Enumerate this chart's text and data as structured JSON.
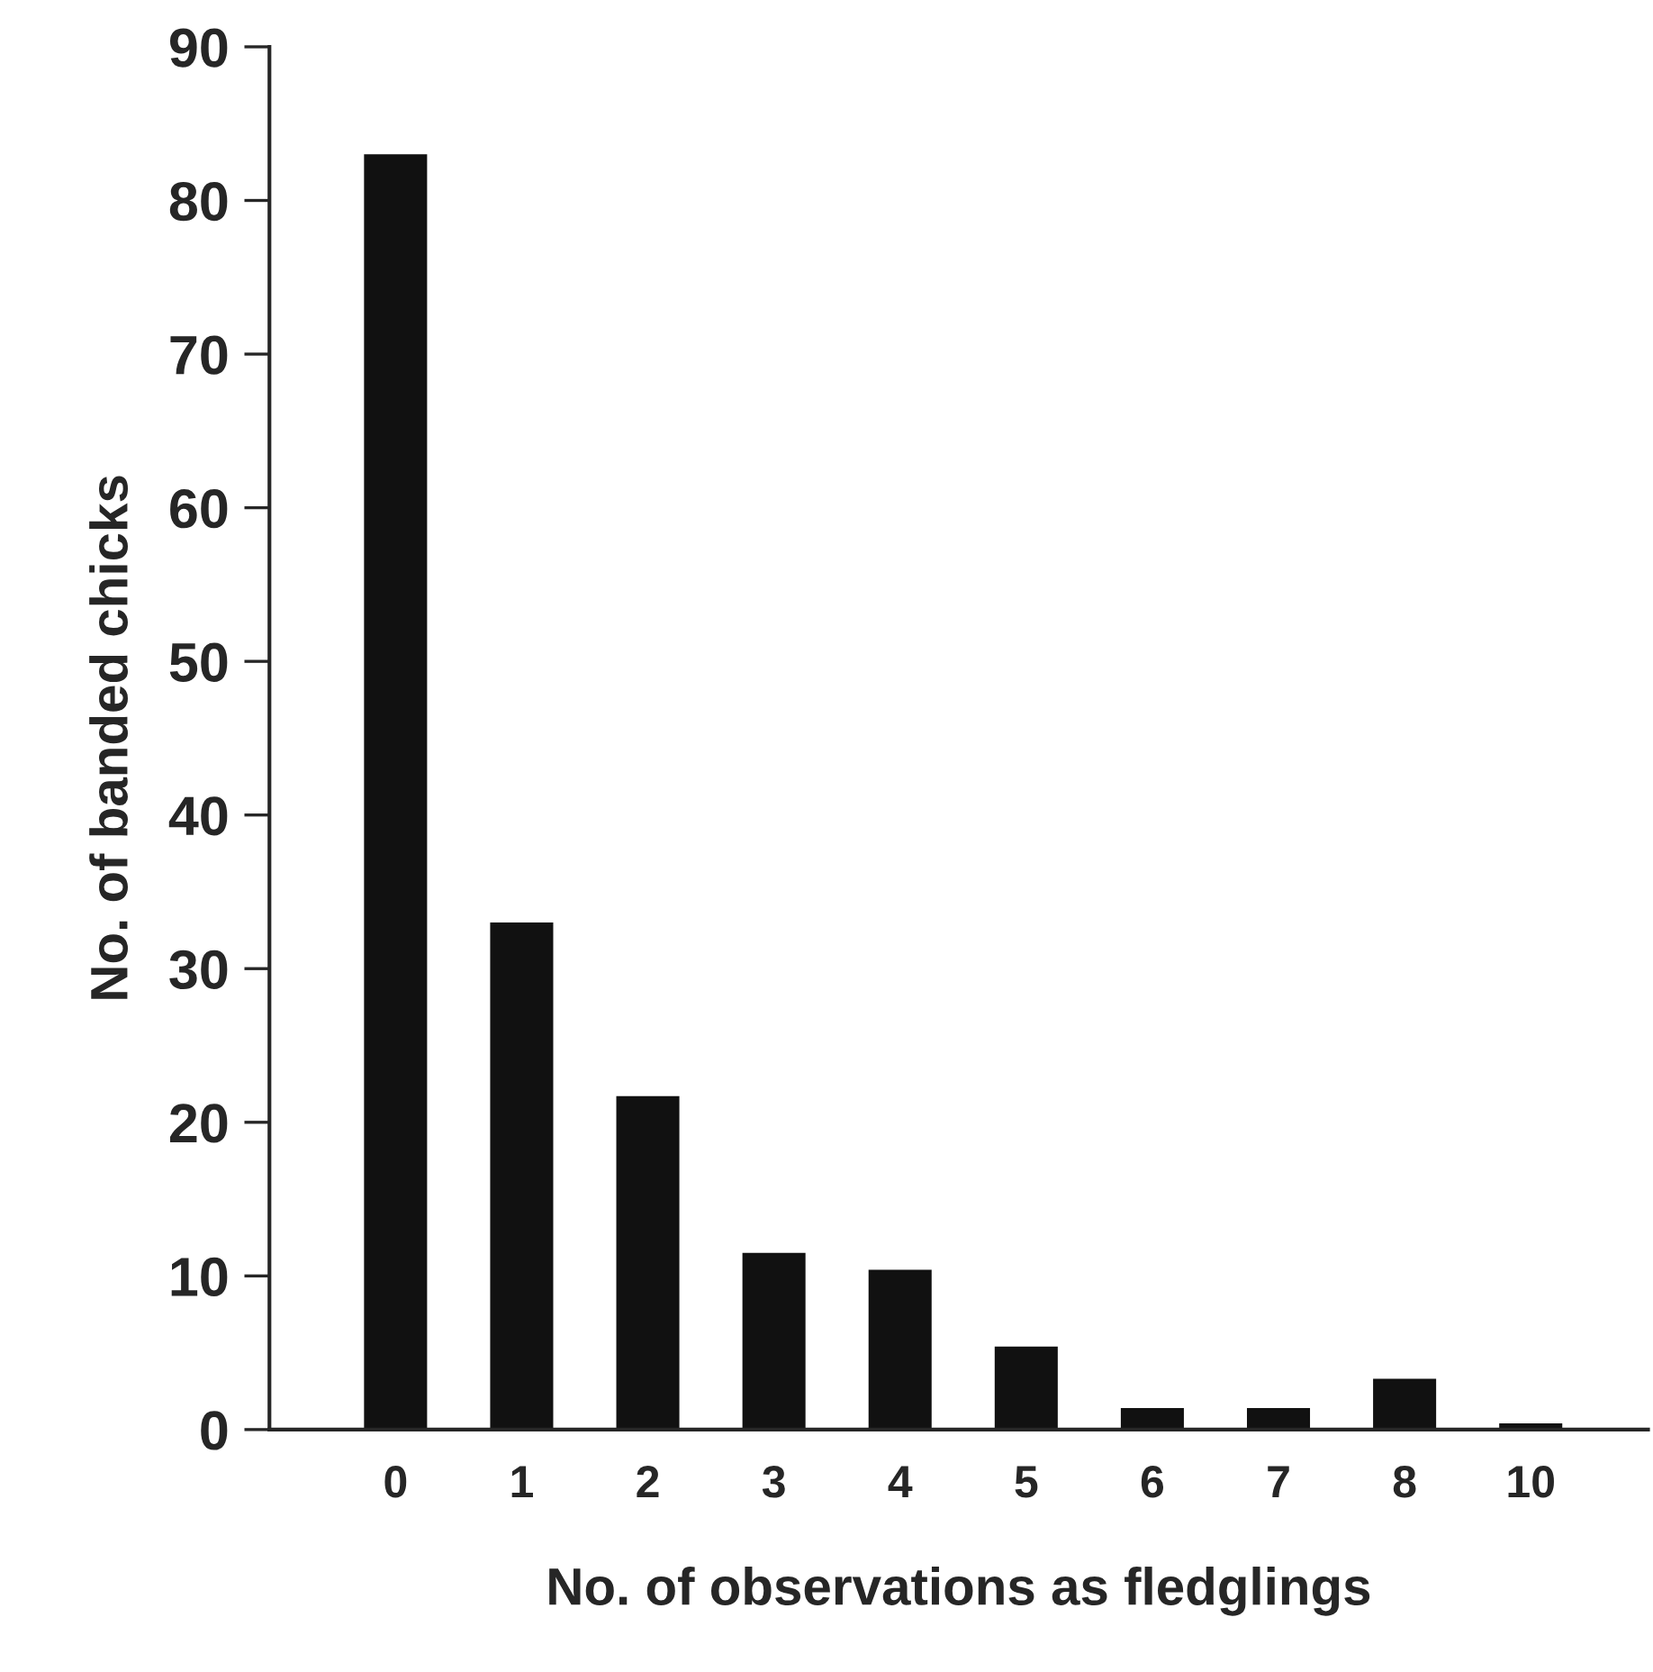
{
  "chart_data": {
    "type": "bar",
    "xlabel": "No. of observations as fledglings",
    "ylabel": "No. of banded chicks",
    "categories": [
      "0",
      "1",
      "2",
      "3",
      "4",
      "5",
      "6",
      "7",
      "8",
      "10"
    ],
    "values": [
      83,
      33,
      21.7,
      11.5,
      10.4,
      5.4,
      1.4,
      1.4,
      3.3,
      0.4
    ],
    "color": "#111111",
    "ylim": [
      0,
      90
    ],
    "yticks": [
      0,
      10,
      20,
      30,
      40,
      50,
      60,
      70,
      80,
      90
    ],
    "grid": false
  }
}
